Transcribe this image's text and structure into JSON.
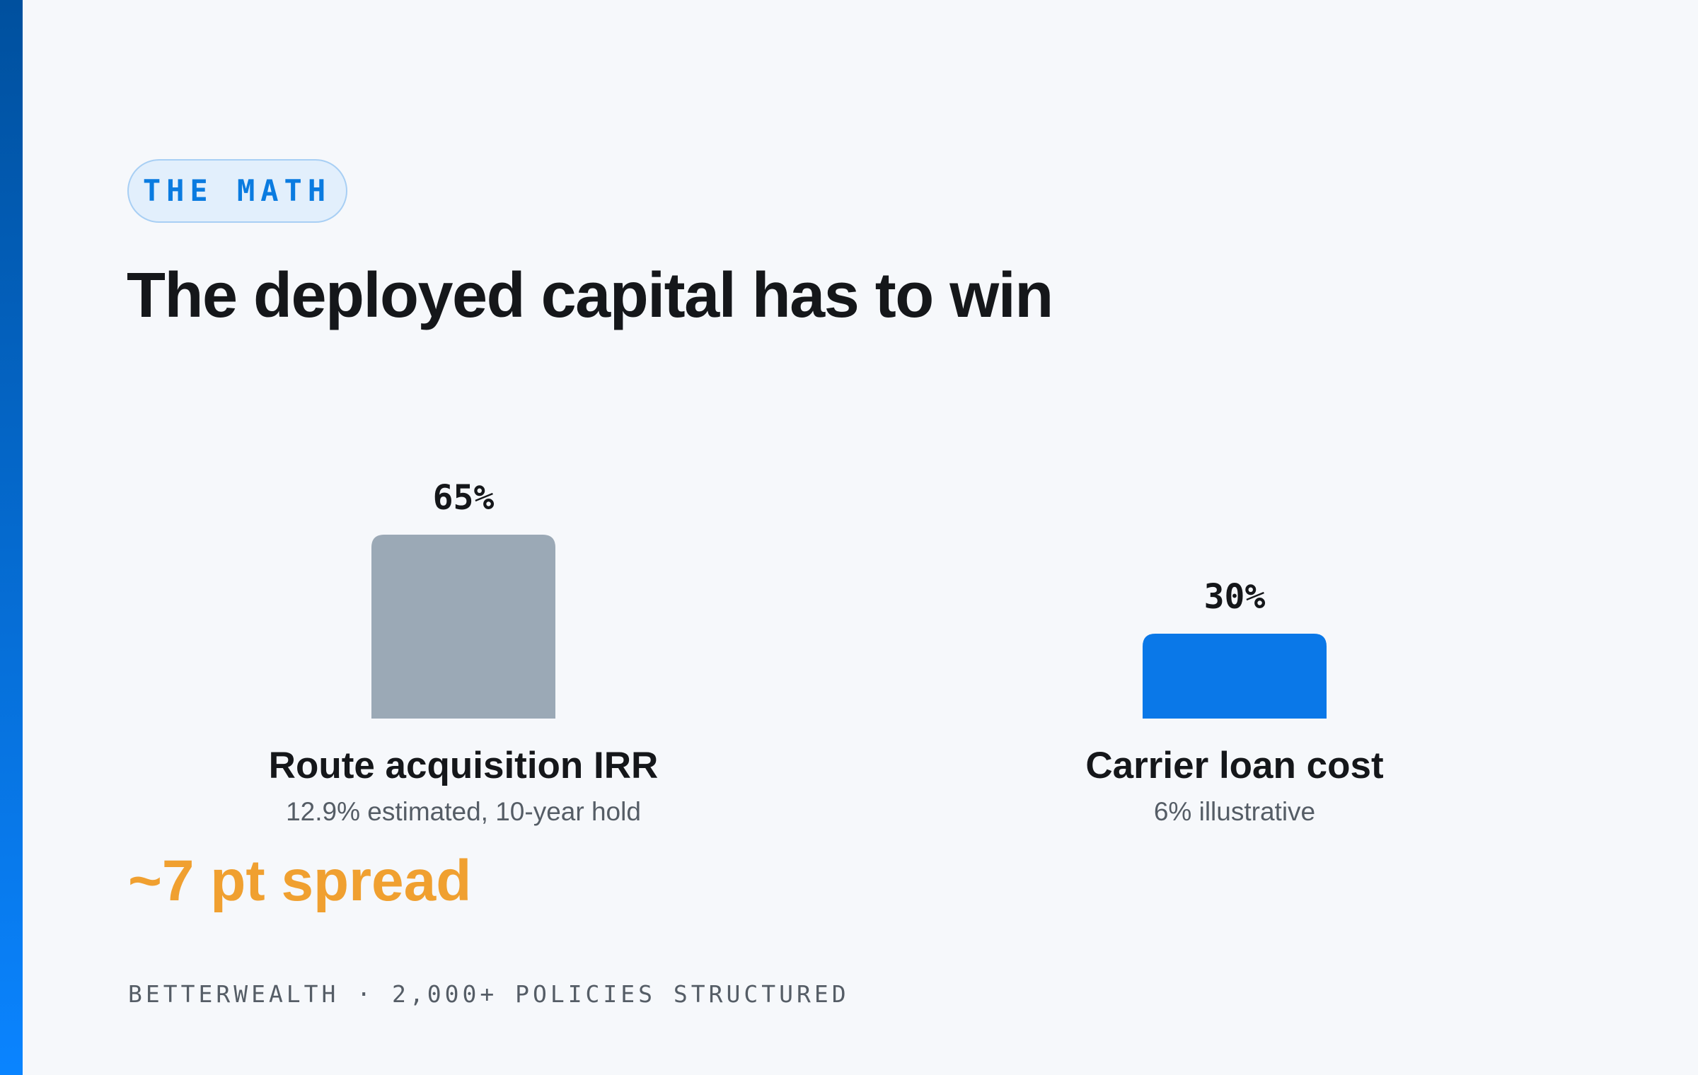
{
  "tag": "THE MATH",
  "title": "The deployed capital has to win",
  "chart_data": {
    "type": "bar",
    "categories": [
      "Route acquisition IRR",
      "Carrier loan cost"
    ],
    "descriptions": [
      "12.9% estimated, 10-year hold",
      "6% illustrative"
    ],
    "values": [
      65,
      30
    ],
    "value_labels": [
      "65%",
      "30%"
    ],
    "colors": [
      "#9ba9b6",
      "#0a78e8"
    ]
  },
  "callout": "~7 pt spread",
  "footer": "BETTERWEALTH · 2,000+ POLICIES STRUCTURED"
}
